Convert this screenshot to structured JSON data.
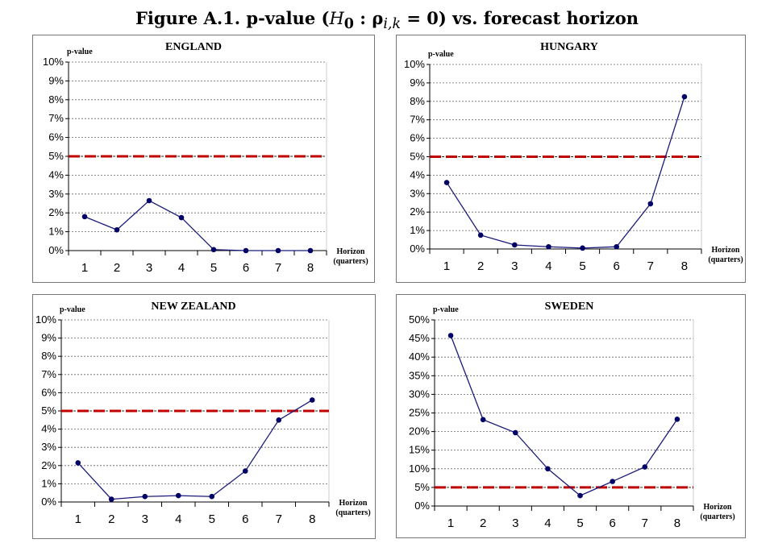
{
  "figure_title": {
    "prefix": "Figure A.1. p-value (",
    "math_H": "H",
    "math_H_sub": "0",
    "math_rest": " : ρ",
    "math_rho_sub": "i,k",
    "math_eq": " = 0)",
    "suffix": " vs. forecast horizon"
  },
  "colors": {
    "series": "#1a1a7a",
    "marker": "#000066",
    "threshold": "#c00000",
    "grid": "#666666"
  },
  "chart_data": [
    {
      "type": "line",
      "title": "ENGLAND",
      "ylabel": "p-value",
      "xlabel": [
        "Horizon",
        "(quarters)"
      ],
      "categories": [
        "1",
        "2",
        "3",
        "4",
        "5",
        "6",
        "7",
        "8"
      ],
      "values": [
        1.8,
        1.1,
        2.65,
        1.75,
        0.05,
        0,
        0,
        0
      ],
      "ylim": [
        0,
        10
      ],
      "yticks": [
        "0%",
        "1%",
        "2%",
        "3%",
        "4%",
        "5%",
        "6%",
        "7%",
        "8%",
        "9%",
        "10%"
      ],
      "threshold": 5,
      "grid": true
    },
    {
      "type": "line",
      "title": "HUNGARY",
      "ylabel": "p-value",
      "xlabel": [
        "Horizon",
        "(quarters)"
      ],
      "categories": [
        "1",
        "2",
        "3",
        "4",
        "5",
        "6",
        "7",
        "8"
      ],
      "values": [
        3.6,
        0.75,
        0.22,
        0.12,
        0.05,
        0.12,
        2.45,
        8.25
      ],
      "ylim": [
        0,
        10
      ],
      "yticks": [
        "0%",
        "1%",
        "2%",
        "3%",
        "4%",
        "5%",
        "6%",
        "7%",
        "8%",
        "9%",
        "10%"
      ],
      "threshold": 5,
      "grid": true
    },
    {
      "type": "line",
      "title": "NEW ZEALAND",
      "ylabel": "p-value",
      "xlabel": [
        "Horizon",
        "(quarters)"
      ],
      "categories": [
        "1",
        "2",
        "3",
        "4",
        "5",
        "6",
        "7",
        "8"
      ],
      "values": [
        2.15,
        0.15,
        0.3,
        0.35,
        0.3,
        1.7,
        4.5,
        5.6
      ],
      "ylim": [
        0,
        10
      ],
      "yticks": [
        "0%",
        "1%",
        "2%",
        "3%",
        "4%",
        "5%",
        "6%",
        "7%",
        "8%",
        "9%",
        "10%"
      ],
      "threshold": 5,
      "grid": true
    },
    {
      "type": "line",
      "title": "SWEDEN",
      "ylabel": "p-value",
      "xlabel": [
        "Horizon",
        "(quarters)"
      ],
      "categories": [
        "1",
        "2",
        "3",
        "4",
        "5",
        "6",
        "7",
        "8"
      ],
      "values": [
        45.8,
        23.2,
        19.7,
        10,
        2.8,
        6.6,
        10.5,
        23.3
      ],
      "ylim": [
        0,
        50
      ],
      "yticks": [
        "0%",
        "5%",
        "10%",
        "15%",
        "20%",
        "25%",
        "30%",
        "35%",
        "40%",
        "45%",
        "50%"
      ],
      "threshold": 5,
      "grid": true
    }
  ]
}
